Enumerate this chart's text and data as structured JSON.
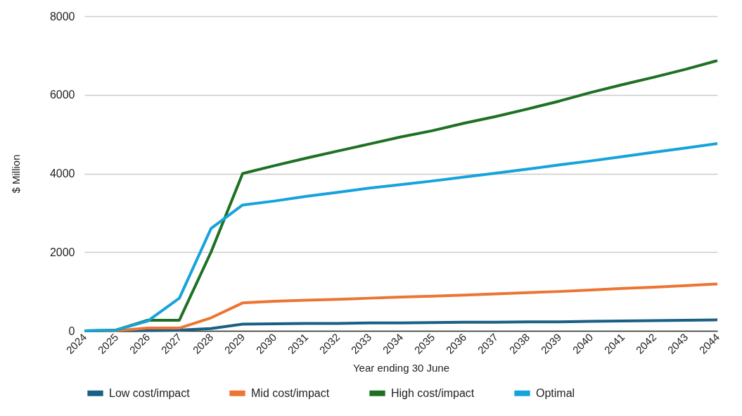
{
  "chart_data": {
    "type": "line",
    "xlabel": "Year ending 30 June",
    "ylabel": "$ Million",
    "categories": [
      "2024",
      "2025",
      "2026",
      "2027",
      "2028",
      "2029",
      "2030",
      "2031",
      "2032",
      "2033",
      "2034",
      "2035",
      "2036",
      "2037",
      "2038",
      "2039",
      "2040",
      "2041",
      "2042",
      "2043",
      "2044"
    ],
    "series": [
      {
        "name": "Low cost/impact",
        "color": "#1a5f85",
        "values": [
          0,
          0,
          10,
          20,
          60,
          170,
          180,
          190,
          190,
          200,
          200,
          210,
          220,
          220,
          230,
          230,
          240,
          250,
          260,
          270,
          280
        ]
      },
      {
        "name": "Mid cost/impact",
        "color": "#ec7533",
        "values": [
          0,
          0,
          70,
          70,
          330,
          710,
          750,
          780,
          800,
          830,
          860,
          880,
          910,
          940,
          970,
          1000,
          1040,
          1080,
          1110,
          1150,
          1190
        ]
      },
      {
        "name": "High cost/impact",
        "color": "#1e7123",
        "values": [
          0,
          20,
          270,
          270,
          2000,
          4000,
          4200,
          4390,
          4570,
          4750,
          4930,
          5090,
          5280,
          5450,
          5640,
          5840,
          6060,
          6260,
          6450,
          6650,
          6870
        ]
      },
      {
        "name": "Optimal",
        "color": "#16a3db",
        "values": [
          0,
          20,
          250,
          830,
          2600,
          3200,
          3300,
          3420,
          3520,
          3630,
          3720,
          3810,
          3910,
          4010,
          4110,
          4220,
          4320,
          4430,
          4540,
          4650,
          4760
        ]
      }
    ],
    "ylim": [
      0,
      8000
    ],
    "yticks": [
      0,
      2000,
      4000,
      6000,
      8000
    ],
    "grid": "y",
    "legend": "bottom",
    "marker": "none",
    "line_style": "solid"
  }
}
